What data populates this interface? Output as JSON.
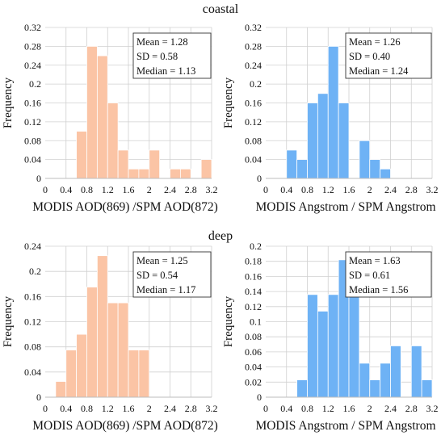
{
  "sections": [
    "coastal",
    "deep"
  ],
  "chart_data": [
    {
      "type": "bar",
      "group": "coastal",
      "color": "#FBC4A5",
      "xlabel": "MODIS AOD(869) /SPM AOD(872)",
      "ylabel": "Frequency",
      "xlim": [
        0,
        3.2
      ],
      "ylim": [
        0,
        0.32
      ],
      "xticks": [
        "0",
        "0.4",
        "0.8",
        "1.2",
        "1.6",
        "2",
        "2.4",
        "2.8",
        "3.2"
      ],
      "yticks": [
        "0",
        "0.04",
        "0.08",
        "0.12",
        "0.16",
        "0.2",
        "0.24",
        "0.28",
        "0.32"
      ],
      "bin_width": 0.2,
      "bins": [
        {
          "x": 0.6,
          "v": 0.1
        },
        {
          "x": 0.8,
          "v": 0.28
        },
        {
          "x": 1.0,
          "v": 0.26
        },
        {
          "x": 1.2,
          "v": 0.16
        },
        {
          "x": 1.4,
          "v": 0.06
        },
        {
          "x": 1.6,
          "v": 0.02
        },
        {
          "x": 1.8,
          "v": 0.02
        },
        {
          "x": 2.0,
          "v": 0.06
        },
        {
          "x": 2.4,
          "v": 0.02
        },
        {
          "x": 2.6,
          "v": 0.02
        },
        {
          "x": 3.0,
          "v": 0.04
        }
      ],
      "stats": [
        "Mean = 1.28",
        "SD = 0.58",
        "Median = 1.13"
      ]
    },
    {
      "type": "bar",
      "group": "coastal",
      "color": "#6EB2F5",
      "xlabel": "MODIS Angstrom / SPM Angstrom",
      "ylabel": "Frequency",
      "xlim": [
        0,
        3.2
      ],
      "ylim": [
        0,
        0.32
      ],
      "xticks": [
        "0",
        "0.4",
        "0.8",
        "1.2",
        "1.6",
        "2",
        "2.4",
        "2.8",
        "3.2"
      ],
      "yticks": [
        "0",
        "0.04",
        "0.08",
        "0.12",
        "0.16",
        "0.2",
        "0.24",
        "0.28",
        "0.32"
      ],
      "bin_width": 0.2,
      "bins": [
        {
          "x": 0.4,
          "v": 0.06
        },
        {
          "x": 0.6,
          "v": 0.04
        },
        {
          "x": 0.8,
          "v": 0.16
        },
        {
          "x": 1.0,
          "v": 0.18
        },
        {
          "x": 1.2,
          "v": 0.28
        },
        {
          "x": 1.4,
          "v": 0.16
        },
        {
          "x": 1.8,
          "v": 0.08
        },
        {
          "x": 2.0,
          "v": 0.04
        },
        {
          "x": 2.2,
          "v": 0.02
        }
      ],
      "stats": [
        "Mean = 1.26",
        "SD = 0.40",
        "Median = 1.24"
      ]
    },
    {
      "type": "bar",
      "group": "deep",
      "color": "#FBC4A5",
      "xlabel": "MODIS AOD(869) /SPM AOD(872)",
      "ylabel": "Frequency",
      "xlim": [
        0,
        3.2
      ],
      "ylim": [
        0,
        0.24
      ],
      "xticks": [
        "0",
        "0.4",
        "0.8",
        "1.2",
        "1.6",
        "2",
        "2.4",
        "2.8",
        "3.2"
      ],
      "yticks": [
        "0",
        "0.04",
        "0.08",
        "0.12",
        "0.16",
        "0.2",
        "0.24"
      ],
      "bin_width": 0.2,
      "bins": [
        {
          "x": 0.2,
          "v": 0.025
        },
        {
          "x": 0.4,
          "v": 0.075
        },
        {
          "x": 0.6,
          "v": 0.1
        },
        {
          "x": 0.8,
          "v": 0.175
        },
        {
          "x": 1.0,
          "v": 0.225
        },
        {
          "x": 1.2,
          "v": 0.15
        },
        {
          "x": 1.4,
          "v": 0.15
        },
        {
          "x": 1.6,
          "v": 0.075
        },
        {
          "x": 1.8,
          "v": 0.075
        }
      ],
      "stats": [
        "Mean = 1.25",
        "SD = 0.54",
        "Median = 1.17"
      ]
    },
    {
      "type": "bar",
      "group": "deep",
      "color": "#6EB2F5",
      "xlabel": "MODIS Angstrom / SPM Angstrom",
      "ylabel": "Frequency",
      "xlim": [
        0,
        3.2
      ],
      "ylim": [
        0,
        0.2
      ],
      "xticks": [
        "0",
        "0.4",
        "0.8",
        "1.2",
        "1.6",
        "2",
        "2.4",
        "2.8",
        "3.2"
      ],
      "yticks": [
        "0",
        "0.02",
        "0.04",
        "0.06",
        "0.08",
        "0.1",
        "0.12",
        "0.14",
        "0.16",
        "0.18",
        "0.2"
      ],
      "bin_width": 0.2,
      "bins": [
        {
          "x": 0.6,
          "v": 0.023
        },
        {
          "x": 0.8,
          "v": 0.136
        },
        {
          "x": 1.0,
          "v": 0.114
        },
        {
          "x": 1.2,
          "v": 0.136
        },
        {
          "x": 1.4,
          "v": 0.182
        },
        {
          "x": 1.6,
          "v": 0.136
        },
        {
          "x": 1.8,
          "v": 0.045
        },
        {
          "x": 2.0,
          "v": 0.023
        },
        {
          "x": 2.2,
          "v": 0.045
        },
        {
          "x": 2.4,
          "v": 0.068
        },
        {
          "x": 2.8,
          "v": 0.068
        },
        {
          "x": 3.0,
          "v": 0.023
        }
      ],
      "stats": [
        "Mean = 1.63",
        "SD = 0.61",
        "Median = 1.56"
      ]
    }
  ]
}
